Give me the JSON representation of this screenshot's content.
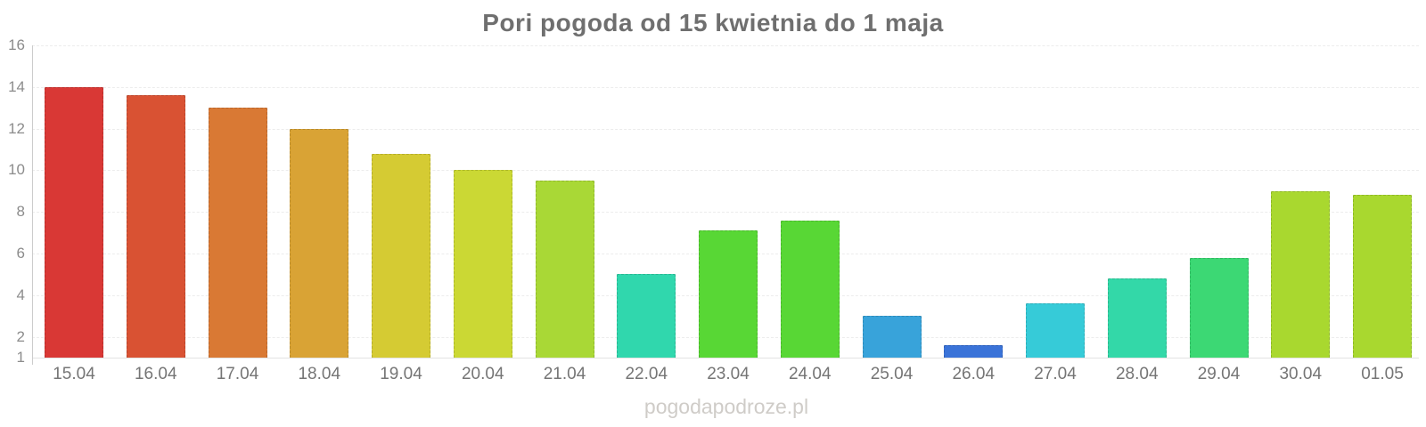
{
  "title": "Pori pogoda od 15 kwietnia do 1 maja",
  "watermark": "pogodapodroze.pl",
  "chart_data": {
    "type": "bar",
    "title": "Pori pogoda od 15 kwietnia do 1 maja",
    "categories": [
      "15.04",
      "16.04",
      "17.04",
      "18.04",
      "19.04",
      "20.04",
      "21.04",
      "22.04",
      "23.04",
      "24.04",
      "25.04",
      "26.04",
      "27.04",
      "28.04",
      "29.04",
      "30.04",
      "01.05"
    ],
    "values": [
      14.0,
      13.6,
      13.0,
      12.0,
      10.8,
      10.0,
      9.5,
      5.0,
      7.1,
      7.6,
      3.0,
      1.6,
      3.6,
      4.8,
      5.8,
      9.0,
      8.8
    ],
    "bar_colors": [
      "#d93835",
      "#d95233",
      "#d97934",
      "#d9a335",
      "#d5cb33",
      "#cbd834",
      "#a9d836",
      "#30d7ad",
      "#58d735",
      "#58d735",
      "#38a3da",
      "#3a73d8",
      "#36cbd8",
      "#33d8a8",
      "#3cd874",
      "#a9d82f",
      "#a9d82f"
    ],
    "xlabel": "",
    "ylabel": "",
    "ylim": [
      1,
      16
    ],
    "y_ticks": [
      16,
      14,
      12,
      10,
      8,
      6,
      4,
      2,
      1
    ],
    "grid": true,
    "legend_position": "none"
  },
  "colors": {
    "title_text": "#6f6f6f",
    "y_tick_text": "#8c8c8c",
    "x_label_text": "#757575",
    "watermark_text": "#cfccc8",
    "gridline": "#ececec",
    "axis_line": "#cccccc",
    "background": "#ffffff"
  }
}
